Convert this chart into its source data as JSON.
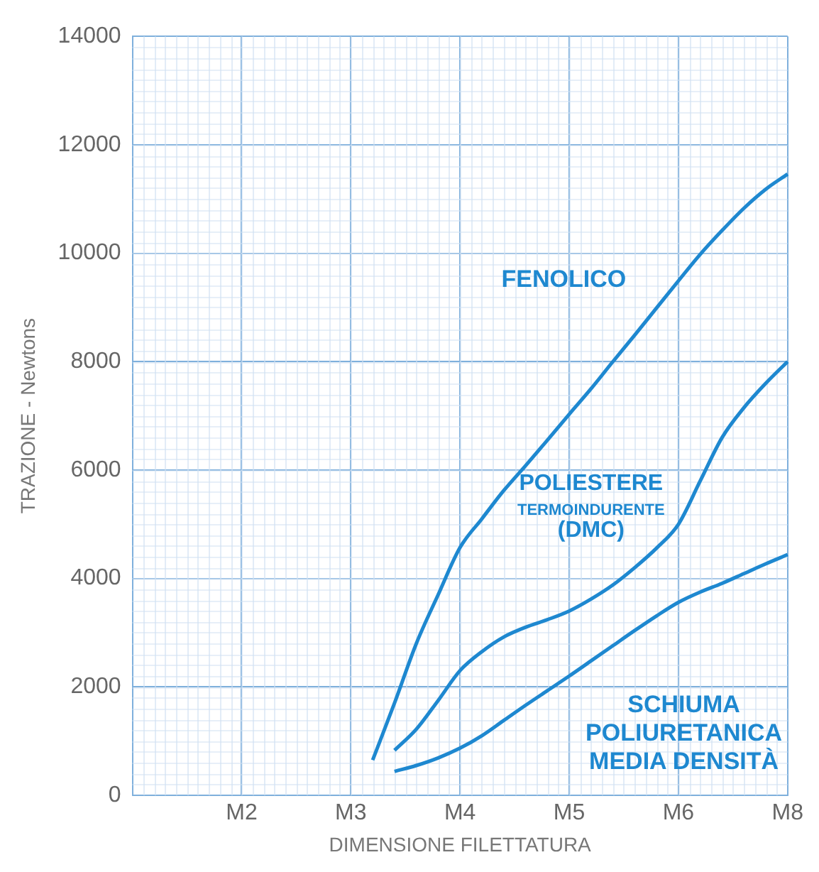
{
  "chart_data": {
    "type": "line",
    "xlabel": "DIMENSIONE FILETTATURA",
    "ylabel": "TRAZIONE - Newtons",
    "categories": [
      null,
      null,
      null,
      null,
      null,
      "M2",
      null,
      null,
      null,
      null,
      "M3",
      null,
      null,
      null,
      null,
      "M4",
      null,
      null,
      null,
      null,
      "M5",
      null,
      null,
      null,
      null,
      "M6",
      null,
      null,
      null,
      null,
      "M8"
    ],
    "ylim": [
      0,
      14000
    ],
    "yticks": [
      0,
      2000,
      4000,
      6000,
      8000,
      10000,
      12000,
      14000
    ],
    "grid": true,
    "legend": false,
    "marker": "none",
    "line_style": "solid",
    "series": [
      {
        "name": "FENOLICO",
        "color": "#1e88d0",
        "values": [
          null,
          null,
          null,
          null,
          null,
          null,
          null,
          null,
          null,
          null,
          null,
          650,
          1700,
          2800,
          3700,
          4570,
          5100,
          5620,
          6080,
          6550,
          7030,
          7500,
          8000,
          8490,
          8990,
          9490,
          9980,
          10420,
          10830,
          11180,
          11460
        ]
      },
      {
        "name": "POLIESTERE TERMOINDURENTE (DMC)",
        "color": "#1e88d0",
        "values": [
          null,
          null,
          null,
          null,
          null,
          null,
          null,
          null,
          null,
          null,
          null,
          null,
          830,
          1220,
          1750,
          2300,
          2650,
          2920,
          3100,
          3240,
          3400,
          3620,
          3880,
          4200,
          4560,
          5000,
          5800,
          6600,
          7150,
          7600,
          8000
        ]
      },
      {
        "name": "SCHIUMA POLIURETANICA MEDIA DENSITÀ",
        "color": "#1e88d0",
        "values": [
          null,
          null,
          null,
          null,
          null,
          null,
          null,
          null,
          null,
          null,
          null,
          null,
          440,
          550,
          690,
          870,
          1100,
          1380,
          1660,
          1930,
          2200,
          2480,
          2760,
          3040,
          3310,
          3560,
          3750,
          3910,
          4090,
          4270,
          4440
        ]
      }
    ]
  }
}
